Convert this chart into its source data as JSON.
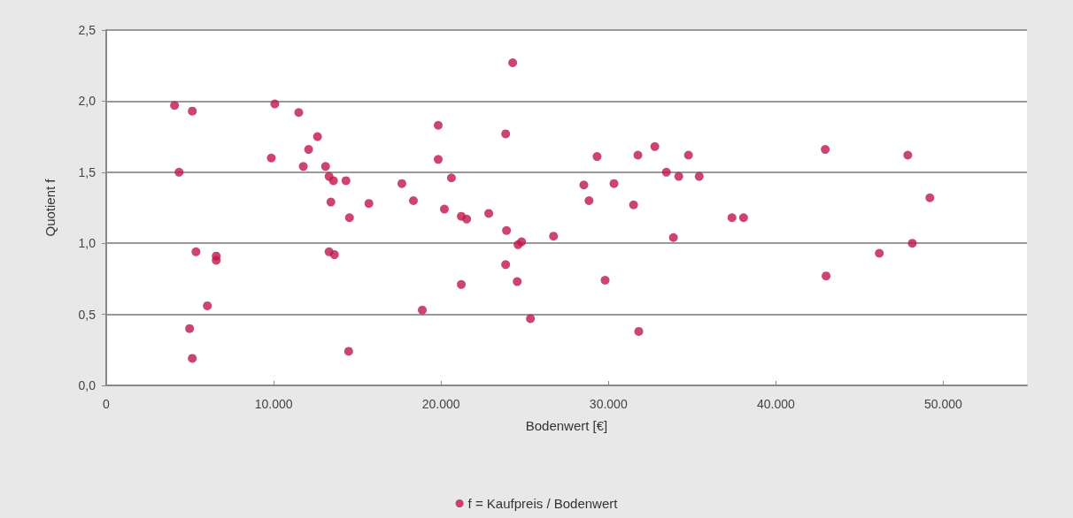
{
  "chart_data": {
    "type": "scatter",
    "xlabel": "Bodenwert [€]",
    "ylabel": "Quotient f",
    "xlim": [
      0,
      55000
    ],
    "xticks": [
      {
        "value": 0,
        "label": "0"
      },
      {
        "value": 10000,
        "label": "10.000"
      },
      {
        "value": 20000,
        "label": "20.000"
      },
      {
        "value": 30000,
        "label": "30.000"
      },
      {
        "value": 40000,
        "label": "40.000"
      },
      {
        "value": 50000,
        "label": "50.000"
      }
    ],
    "ylim": [
      0,
      2.5
    ],
    "yticks": [
      {
        "value": 0,
        "label": "0,0"
      },
      {
        "value": 0.5,
        "label": "0,5"
      },
      {
        "value": 1,
        "label": "1,0"
      },
      {
        "value": 1.5,
        "label": "1,5"
      },
      {
        "value": 2,
        "label": "2,0"
      },
      {
        "value": 2.5,
        "label": "2,5"
      }
    ],
    "grid": "y",
    "legend": "bottom",
    "marker": "circle",
    "series": [
      {
        "name": "f = Kaufpreis / Bodenwert",
        "color": "#c0174a",
        "x": [
          4080,
          4350,
          5140,
          5360,
          4980,
          5140,
          6040,
          6570,
          6570,
          9860,
          10070,
          11500,
          11770,
          12090,
          12620,
          13100,
          13310,
          13570,
          13420,
          13310,
          13630,
          14320,
          14530,
          14480,
          15690,
          17660,
          18350,
          18880,
          19830,
          19830,
          20620,
          20200,
          21210,
          21530,
          21210,
          22850,
          23860,
          24280,
          23860,
          23910,
          24600,
          24810,
          24550,
          25340,
          26720,
          28530,
          28840,
          29320,
          29800,
          30330,
          31500,
          31760,
          31810,
          32770,
          33460,
          33880,
          34200,
          34780,
          35420,
          37380,
          38070,
          42950,
          43000,
          46180,
          47880,
          48150,
          49200
        ],
        "values": [
          1.97,
          1.5,
          1.93,
          0.94,
          0.4,
          0.19,
          0.56,
          0.91,
          0.88,
          1.6,
          1.98,
          1.92,
          1.54,
          1.66,
          1.75,
          1.54,
          1.47,
          1.44,
          1.29,
          0.94,
          0.92,
          1.44,
          1.18,
          0.24,
          1.28,
          1.42,
          1.3,
          0.53,
          1.83,
          1.59,
          1.46,
          1.24,
          1.19,
          1.17,
          0.71,
          1.21,
          1.77,
          2.27,
          0.85,
          1.09,
          0.99,
          1.01,
          0.73,
          0.47,
          1.05,
          1.41,
          1.3,
          1.61,
          0.74,
          1.42,
          1.27,
          1.62,
          0.38,
          1.68,
          1.5,
          1.04,
          1.47,
          1.62,
          1.47,
          1.18,
          1.18,
          1.66,
          0.77,
          0.93,
          1.62,
          1.0,
          1.32
        ]
      }
    ]
  }
}
